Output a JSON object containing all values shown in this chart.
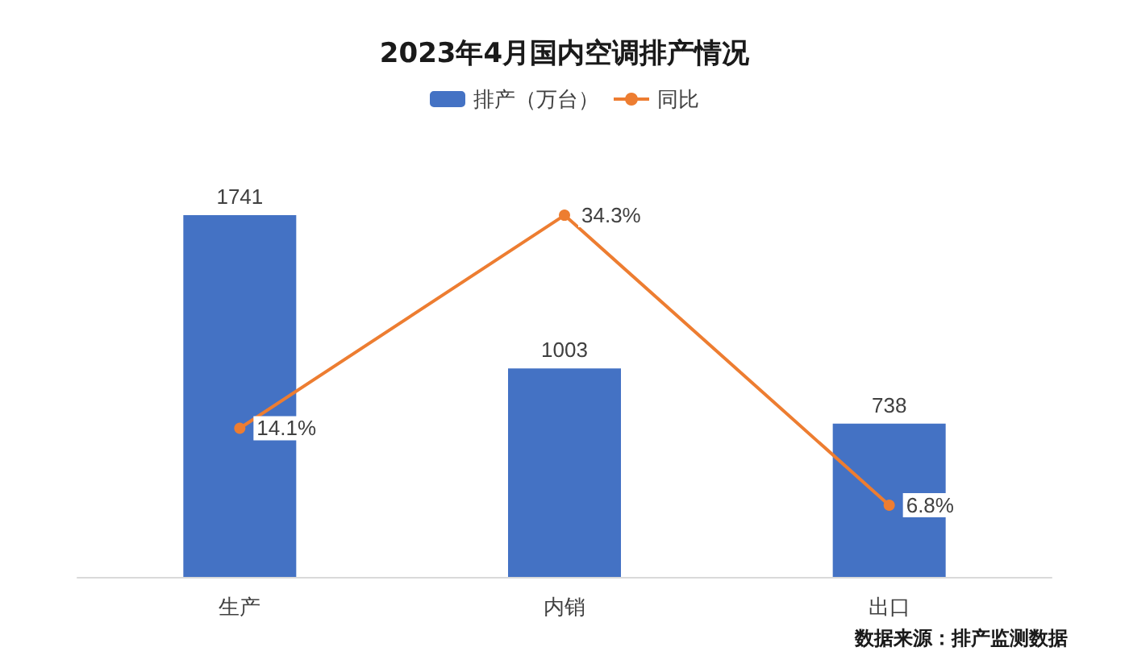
{
  "chart_data": {
    "type": "bar",
    "title": "2023年4月国内空调排产情况",
    "categories": [
      "生产",
      "内销",
      "出口"
    ],
    "series": [
      {
        "name": "排产（万台）",
        "color": "#4472c4",
        "values": [
          1741,
          1003,
          738
        ],
        "value_labels": [
          "1741",
          "1003",
          "738"
        ]
      },
      {
        "name": "同比",
        "type": "line",
        "axis": "y2",
        "color": "#ed7d31",
        "values": [
          14.1,
          34.3,
          6.8
        ],
        "value_labels": [
          "14.1%",
          "34.3%",
          "6.8%"
        ],
        "marker": "circle"
      }
    ],
    "legend": "top",
    "grid": false,
    "tick_labels": "x",
    "annotations": [
      "数据来源：排产监测数据"
    ]
  }
}
